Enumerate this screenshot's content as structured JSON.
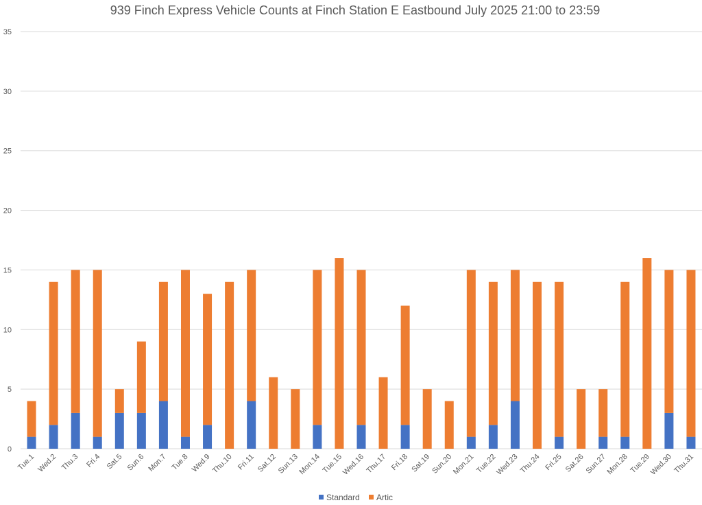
{
  "chart_data": {
    "type": "bar",
    "stacked": true,
    "title": "939 Finch Express Vehicle Counts at Finch Station E Eastbound July 2025  21:00 to 23:59",
    "xlabel": "",
    "ylabel": "",
    "ylim": [
      0,
      35
    ],
    "yticks": [
      0,
      5,
      10,
      15,
      20,
      25,
      30,
      35
    ],
    "grid": true,
    "legend_position": "bottom",
    "categories": [
      "Tue.1",
      "Wed.2",
      "Thu.3",
      "Fri.4",
      "Sat.5",
      "Sun.6",
      "Mon.7",
      "Tue.8",
      "Wed.9",
      "Thu.10",
      "Fri.11",
      "Sat.12",
      "Sun.13",
      "Mon.14",
      "Tue.15",
      "Wed.16",
      "Thu.17",
      "Fri.18",
      "Sat.19",
      "Sun.20",
      "Mon.21",
      "Tue.22",
      "Wed.23",
      "Thu.24",
      "Fri.25",
      "Sat.26",
      "Sun.27",
      "Mon.28",
      "Tue.29",
      "Wed.30",
      "Thu.31"
    ],
    "series": [
      {
        "name": "Standard",
        "color": "#4472C4",
        "values": [
          1,
          2,
          3,
          1,
          3,
          3,
          4,
          1,
          2,
          0,
          4,
          0,
          0,
          2,
          0,
          2,
          0,
          2,
          0,
          0,
          1,
          2,
          4,
          0,
          1,
          0,
          1,
          1,
          0,
          3,
          1
        ]
      },
      {
        "name": "Artic",
        "color": "#ED7D31",
        "values": [
          3,
          12,
          12,
          14,
          2,
          6,
          10,
          14,
          11,
          14,
          11,
          6,
          5,
          13,
          16,
          13,
          6,
          10,
          5,
          4,
          14,
          12,
          11,
          14,
          13,
          5,
          4,
          13,
          16,
          12,
          14
        ]
      }
    ]
  }
}
